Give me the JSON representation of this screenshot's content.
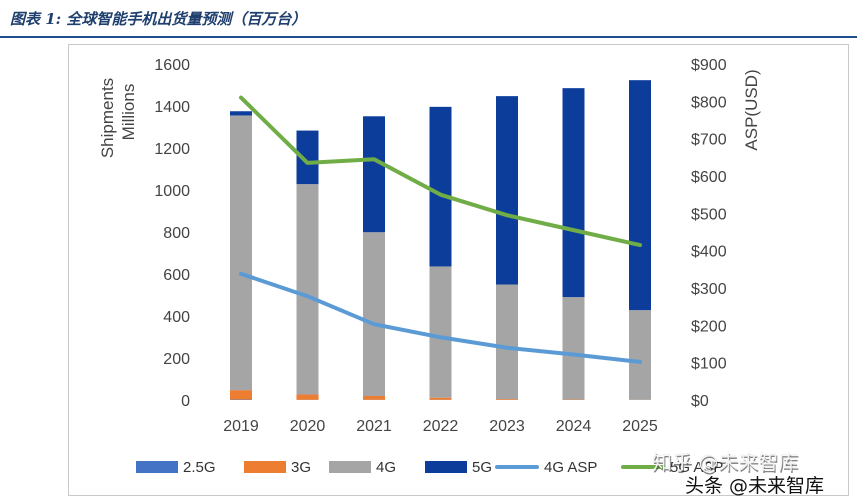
{
  "header": {
    "title": "图表 1:  全球智能手机出货量预测（百万台）"
  },
  "chart_data": {
    "type": "bar",
    "title": "全球智能手机出货量预测（百万台）",
    "categories": [
      "2019",
      "2020",
      "2021",
      "2022",
      "2023",
      "2024",
      "2025"
    ],
    "stack_series": [
      {
        "name": "2.5G",
        "color": "#4472c4",
        "values": [
          2,
          1,
          1,
          1,
          0,
          0,
          0
        ]
      },
      {
        "name": "3G",
        "color": "#ed7d31",
        "values": [
          45,
          25,
          18,
          10,
          4,
          2,
          1
        ]
      },
      {
        "name": "4G",
        "color": "#a5a5a5",
        "values": [
          1308,
          1002,
          780,
          625,
          546,
          488,
          427
        ]
      },
      {
        "name": "5G",
        "color": "#0d3d9b",
        "values": [
          20,
          255,
          552,
          760,
          897,
          995,
          1095
        ]
      }
    ],
    "line_series": [
      {
        "name": "4G ASP",
        "color": "#5b9bd5",
        "axis": "right",
        "values": [
          338,
          278,
          203,
          168,
          140,
          122,
          102
        ]
      },
      {
        "name": "5G ASP",
        "color": "#70ad47",
        "axis": "right",
        "values": [
          810,
          635,
          645,
          550,
          495,
          455,
          415
        ]
      }
    ],
    "y_left": {
      "label_line1": "Shipments",
      "label_line2": "Millions",
      "min": 0,
      "max": 1600,
      "step": 200
    },
    "y_right": {
      "label": "ASP(USD)",
      "min": 0,
      "max": 900,
      "step": 100,
      "prefix": "$"
    },
    "grid": false,
    "legend_position": "bottom"
  },
  "watermark": {
    "primary": "知乎 @未来智库",
    "secondary": "头条 @未来智库"
  }
}
